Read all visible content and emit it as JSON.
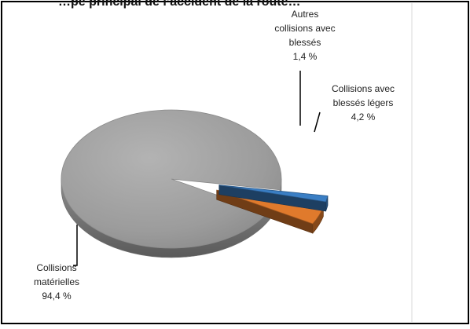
{
  "chart_data": {
    "type": "pie",
    "title": "…pe principal de l’accident de la route…",
    "slices": [
      {
        "label": "Collisions matérielles",
        "value": 94.4,
        "value_label": "94,4 %",
        "color": "#9a9a9a",
        "exploded": false
      },
      {
        "label": "Collisions avec blessés légers",
        "value": 4.2,
        "value_label": "4,2 %",
        "color": "#e07a2c",
        "exploded": true
      },
      {
        "label": "Autres collisions avec blessés",
        "value": 1.4,
        "value_label": "1,4 %",
        "color": "#3a7ec4",
        "exploded": true
      }
    ],
    "style": "3d-exploded",
    "legend": "none"
  }
}
